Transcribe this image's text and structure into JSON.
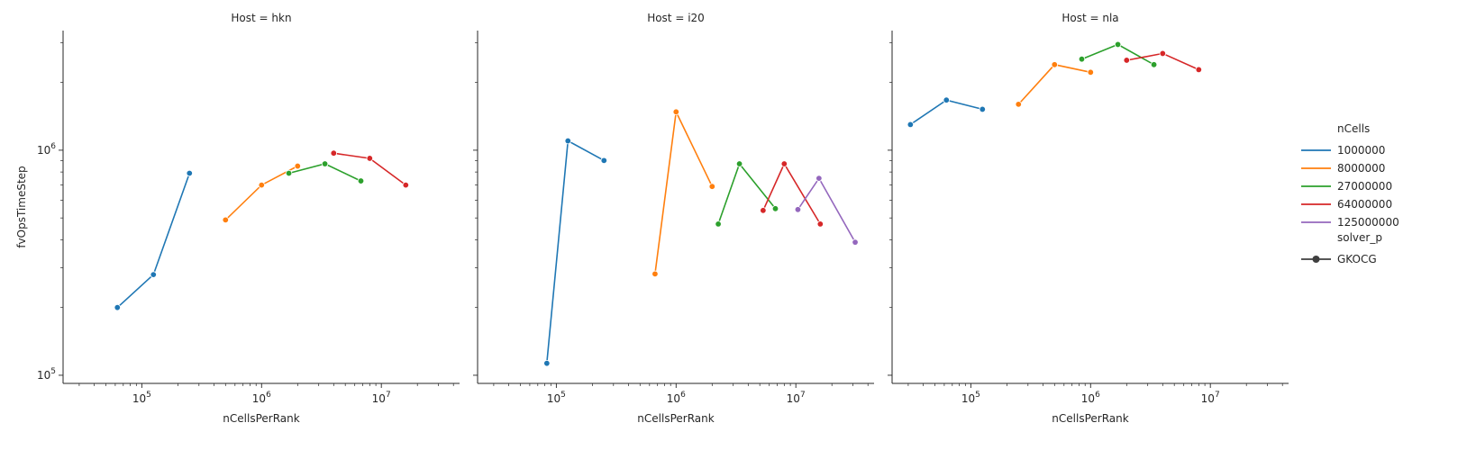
{
  "chart_data": {
    "type": "line",
    "xlabel": "nCellsPerRank",
    "ylabel": "fvOpsTimeStep",
    "xscale": "log",
    "yscale": "log",
    "xlim": [
      22000.0,
      45000000.0
    ],
    "ylim": [
      92000.0,
      3400000.0
    ],
    "x_ticks": [
      {
        "value": 100000.0,
        "base": "10",
        "exp": "5"
      },
      {
        "value": 1000000.0,
        "base": "10",
        "exp": "6"
      },
      {
        "value": 10000000.0,
        "base": "10",
        "exp": "7"
      }
    ],
    "y_ticks": [
      {
        "value": 100000.0,
        "base": "10",
        "exp": "5"
      },
      {
        "value": 1000000.0,
        "base": "10",
        "exp": "6"
      }
    ],
    "legend": {
      "position": "right",
      "hue_title": "nCells",
      "hue_entries": [
        {
          "label": "1000000",
          "color": "#1f77b4"
        },
        {
          "label": "8000000",
          "color": "#ff7f0e"
        },
        {
          "label": "27000000",
          "color": "#2ca02c"
        },
        {
          "label": "64000000",
          "color": "#d62728"
        },
        {
          "label": "125000000",
          "color": "#9467bd"
        }
      ],
      "style_title": "solver_p",
      "style_entries": [
        {
          "label": "GKOCG",
          "color": "#3f3f3f"
        }
      ]
    },
    "panels": [
      {
        "title": "Host = hkn",
        "series": [
          {
            "name": "1000000",
            "color": "#1f77b4",
            "points": [
              [
                62500,
                200000
              ],
              [
                125000,
                280000
              ],
              [
                250000,
                790000
              ]
            ]
          },
          {
            "name": "8000000",
            "color": "#ff7f0e",
            "points": [
              [
                500000,
                490000
              ],
              [
                1000000,
                700000
              ],
              [
                2000000,
                850000
              ]
            ]
          },
          {
            "name": "27000000",
            "color": "#2ca02c",
            "points": [
              [
                1690000,
                790000
              ],
              [
                3380000,
                870000
              ],
              [
                6750000,
                730000
              ]
            ]
          },
          {
            "name": "64000000",
            "color": "#d62728",
            "points": [
              [
                4000000,
                970000
              ],
              [
                8000000,
                920000
              ],
              [
                16000000,
                700000
              ]
            ]
          }
        ]
      },
      {
        "title": "Host = i20",
        "series": [
          {
            "name": "1000000",
            "color": "#1f77b4",
            "points": [
              [
                83300,
                113000
              ],
              [
                125000,
                1100000
              ],
              [
                250000,
                900000
              ]
            ]
          },
          {
            "name": "8000000",
            "color": "#ff7f0e",
            "points": [
              [
                667000,
                282000
              ],
              [
                1000000,
                1480000
              ],
              [
                2000000,
                690000
              ]
            ]
          },
          {
            "name": "27000000",
            "color": "#2ca02c",
            "points": [
              [
                2250000,
                470000
              ],
              [
                3380000,
                870000
              ],
              [
                6750000,
                550000
              ]
            ]
          },
          {
            "name": "64000000",
            "color": "#d62728",
            "points": [
              [
                5330000,
                540000
              ],
              [
                8000000,
                870000
              ],
              [
                16000000,
                470000
              ]
            ]
          },
          {
            "name": "125000000",
            "color": "#9467bd",
            "points": [
              [
                10400000,
                545000
              ],
              [
                15600000,
                750000
              ],
              [
                31300000,
                390000
              ]
            ]
          }
        ]
      },
      {
        "title": "Host = nla",
        "series": [
          {
            "name": "1000000",
            "color": "#1f77b4",
            "points": [
              [
                31300,
                1300000
              ],
              [
                62500,
                1670000
              ],
              [
                125000,
                1520000
              ]
            ]
          },
          {
            "name": "8000000",
            "color": "#ff7f0e",
            "points": [
              [
                250000,
                1600000
              ],
              [
                500000,
                2400000
              ],
              [
                1000000,
                2220000
              ]
            ]
          },
          {
            "name": "27000000",
            "color": "#2ca02c",
            "points": [
              [
                844000,
                2540000
              ],
              [
                1690000,
                2950000
              ],
              [
                3380000,
                2400000
              ]
            ]
          },
          {
            "name": "64000000",
            "color": "#d62728",
            "points": [
              [
                2000000,
                2510000
              ],
              [
                4000000,
                2690000
              ],
              [
                8000000,
                2280000
              ]
            ]
          }
        ]
      }
    ]
  }
}
